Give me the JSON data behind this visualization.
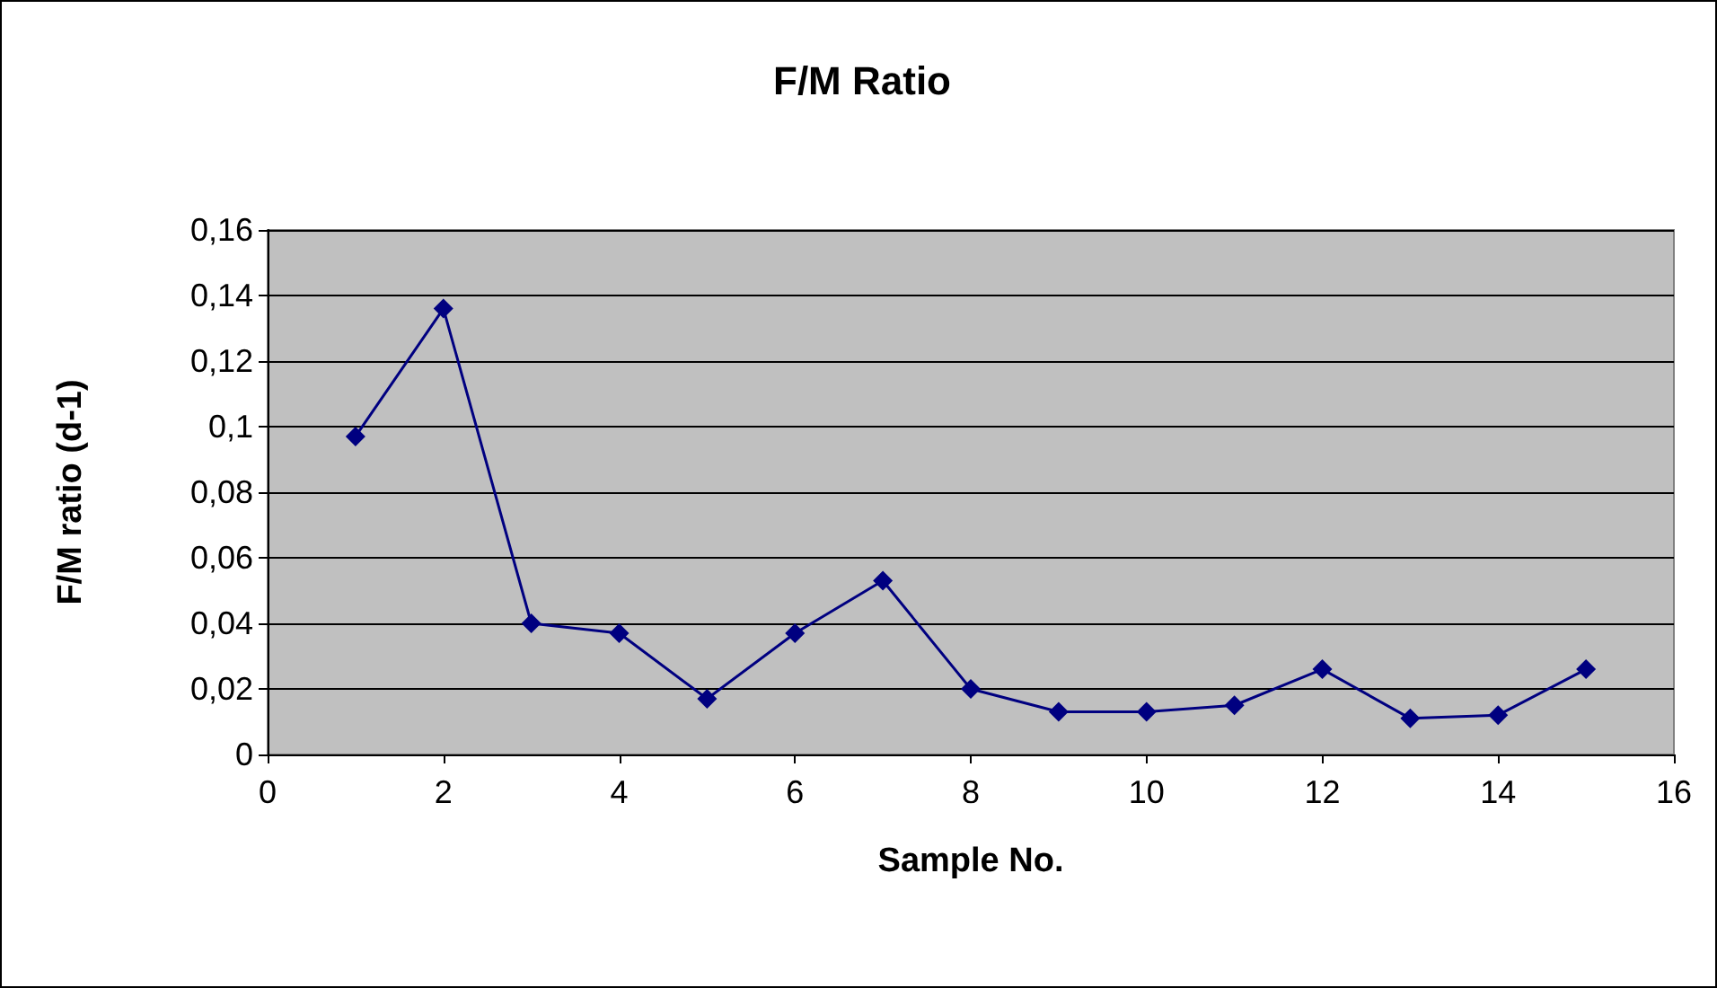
{
  "chart_data": {
    "type": "line",
    "title": "F/M Ratio",
    "xlabel": "Sample No.",
    "ylabel": "F/M ratio (d-1)",
    "x": [
      1,
      2,
      3,
      4,
      5,
      6,
      7,
      8,
      9,
      10,
      11,
      12,
      13,
      14,
      15
    ],
    "series": [
      {
        "color": "#000080",
        "values": [
          0.097,
          0.136,
          0.04,
          0.037,
          0.017,
          0.037,
          0.053,
          0.02,
          0.013,
          0.013,
          0.015,
          0.026,
          0.011,
          0.012,
          0.026
        ]
      }
    ],
    "xlim": [
      0,
      16
    ],
    "xticks": [
      0,
      2,
      4,
      6,
      8,
      10,
      12,
      14,
      16
    ],
    "ylim": [
      0,
      0.16
    ],
    "yticks": [
      {
        "value": 0,
        "label": "0"
      },
      {
        "value": 0.02,
        "label": "0,02"
      },
      {
        "value": 0.04,
        "label": "0,04"
      },
      {
        "value": 0.06,
        "label": "0,06"
      },
      {
        "value": 0.08,
        "label": "0,08"
      },
      {
        "value": 0.1,
        "label": "0,1"
      },
      {
        "value": 0.12,
        "label": "0,12"
      },
      {
        "value": 0.14,
        "label": "0,14"
      },
      {
        "value": 0.16,
        "label": "0,16"
      }
    ],
    "grid": "y",
    "marker": "diamond",
    "line_style": "solid"
  }
}
